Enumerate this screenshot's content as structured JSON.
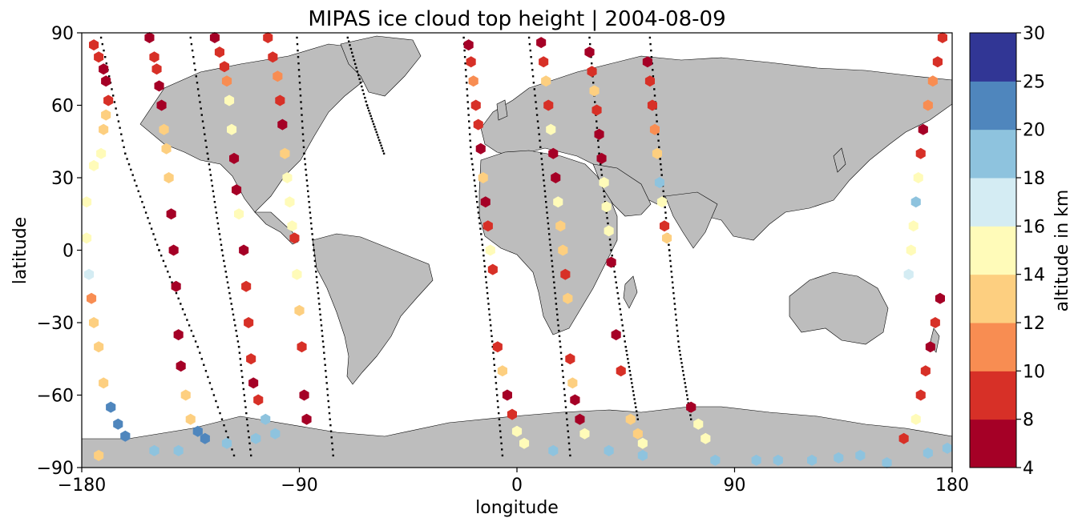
{
  "chart_data": {
    "type": "scatter",
    "title": "MIPAS ice cloud top height | 2004-08-09",
    "xlabel": "longitude",
    "ylabel": "latitude",
    "xlim": [
      -180,
      180
    ],
    "ylim": [
      -90,
      90
    ],
    "x_ticks": [
      -180,
      -90,
      0,
      90,
      180
    ],
    "y_ticks": [
      -90,
      -60,
      -30,
      0,
      30,
      60,
      90
    ],
    "grid": false,
    "colorbar": {
      "label": "altitude in km",
      "bounds": [
        4,
        8,
        10,
        12,
        14,
        16,
        18,
        20,
        25,
        30
      ],
      "colors": [
        "#a50026",
        "#d73027",
        "#f46d43",
        "#fdae61",
        "#fee090",
        "#ffffbf",
        "#e0f3f8",
        "#abd9e9",
        "#74add1",
        "#4575b4",
        "#313695"
      ],
      "level_colors": [
        "#a50026",
        "#d73027",
        "#f88d52",
        "#fdcf80",
        "#fffbb9",
        "#d4ecf3",
        "#8ec3de",
        "#4f86bd",
        "#313695"
      ]
    },
    "background": {
      "land_color": "#bdbdbd",
      "coastline_color": "#000000",
      "ocean_color": "#ffffff"
    },
    "tracks": [
      {
        "x": [
          -180,
          -176,
          -172,
          -168,
          -165,
          -162
        ],
        "y": [
          85,
          70,
          50,
          20,
          -20,
          -80
        ],
        "color_hint": "mixed"
      },
      {
        "x": [
          -152,
          -150,
          -148,
          -145,
          -142,
          -140
        ],
        "y": [
          88,
          70,
          40,
          0,
          -40,
          -78
        ],
        "color_hint": "mixed"
      },
      {
        "x": [
          -125,
          -123,
          -120,
          -118,
          -115,
          -112
        ],
        "y": [
          88,
          70,
          40,
          10,
          -30,
          -72
        ],
        "color_hint": "mixed"
      },
      {
        "x": [
          -103,
          -101,
          -99,
          -96,
          -92,
          -88
        ],
        "y": [
          88,
          70,
          40,
          10,
          -30,
          -72
        ],
        "color_hint": "mixed"
      },
      {
        "x": [
          -22,
          -20,
          -17,
          -13,
          -8,
          -3
        ],
        "y": [
          82,
          60,
          30,
          0,
          -40,
          -82
        ],
        "color_hint": "mixed"
      },
      {
        "x": [
          10,
          12,
          15,
          18,
          21,
          25
        ],
        "y": [
          82,
          60,
          30,
          0,
          -40,
          -82
        ],
        "color_hint": "mixed"
      },
      {
        "x": [
          30,
          33,
          37,
          41,
          44,
          48
        ],
        "y": [
          82,
          60,
          30,
          0,
          -40,
          -82
        ],
        "color_hint": "mixed"
      },
      {
        "x": [
          55,
          57,
          59,
          62,
          65,
          75
        ],
        "y": [
          82,
          60,
          30,
          5,
          -60,
          -85
        ],
        "color_hint": "mixed"
      },
      {
        "x": [
          176,
          174,
          170,
          165,
          160,
          155
        ],
        "y": [
          88,
          60,
          30,
          0,
          -40,
          -85
        ],
        "color_hint": "mixed"
      }
    ],
    "sample_points": [
      {
        "x": -175,
        "y": 85,
        "z": 8.5
      },
      {
        "x": -173,
        "y": 80,
        "z": 9.5
      },
      {
        "x": -171,
        "y": 75,
        "z": 7.0
      },
      {
        "x": -170,
        "y": 70,
        "z": 7.5
      },
      {
        "x": -169,
        "y": 62,
        "z": 9.0
      },
      {
        "x": -170,
        "y": 56,
        "z": 12.5
      },
      {
        "x": -171,
        "y": 50,
        "z": 13.0
      },
      {
        "x": -172,
        "y": 40,
        "z": 14.5
      },
      {
        "x": -175,
        "y": 35,
        "z": 15.0
      },
      {
        "x": -178,
        "y": 20,
        "z": 14.0
      },
      {
        "x": -178,
        "y": 5,
        "z": 14.5
      },
      {
        "x": -177,
        "y": -10,
        "z": 16.5
      },
      {
        "x": -176,
        "y": -20,
        "z": 11.0
      },
      {
        "x": -175,
        "y": -30,
        "z": 12.0
      },
      {
        "x": -173,
        "y": -40,
        "z": 12.8
      },
      {
        "x": -171,
        "y": -55,
        "z": 13.4
      },
      {
        "x": -168,
        "y": -65,
        "z": 21.0
      },
      {
        "x": -165,
        "y": -72,
        "z": 22.0
      },
      {
        "x": -162,
        "y": -77,
        "z": 23.0
      },
      {
        "x": -152,
        "y": 88,
        "z": 7.0
      },
      {
        "x": -150,
        "y": 80,
        "z": 9.2
      },
      {
        "x": -149,
        "y": 75,
        "z": 9.0
      },
      {
        "x": -148,
        "y": 68,
        "z": 7.4
      },
      {
        "x": -147,
        "y": 60,
        "z": 7.8
      },
      {
        "x": -146,
        "y": 50,
        "z": 12.2
      },
      {
        "x": -145,
        "y": 42,
        "z": 13.6
      },
      {
        "x": -144,
        "y": 30,
        "z": 12.8
      },
      {
        "x": -143,
        "y": 15,
        "z": 7.5
      },
      {
        "x": -142,
        "y": 0,
        "z": 7.2
      },
      {
        "x": -141,
        "y": -15,
        "z": 7.7
      },
      {
        "x": -140,
        "y": -35,
        "z": 7.6
      },
      {
        "x": -139,
        "y": -48,
        "z": 7.4
      },
      {
        "x": -137,
        "y": -60,
        "z": 12.6
      },
      {
        "x": -135,
        "y": -70,
        "z": 13.2
      },
      {
        "x": -132,
        "y": -75,
        "z": 22.5
      },
      {
        "x": -129,
        "y": -78,
        "z": 23.0
      },
      {
        "x": -125,
        "y": 88,
        "z": 7.1
      },
      {
        "x": -123,
        "y": 82,
        "z": 9.3
      },
      {
        "x": -121,
        "y": 76,
        "z": 8.8
      },
      {
        "x": -120,
        "y": 70,
        "z": 11.6
      },
      {
        "x": -119,
        "y": 62,
        "z": 15.0
      },
      {
        "x": -118,
        "y": 50,
        "z": 14.2
      },
      {
        "x": -117,
        "y": 38,
        "z": 7.5
      },
      {
        "x": -116,
        "y": 25,
        "z": 7.9
      },
      {
        "x": -115,
        "y": 15,
        "z": 14.6
      },
      {
        "x": -113,
        "y": 0,
        "z": 7.3
      },
      {
        "x": -112,
        "y": -15,
        "z": 8.9
      },
      {
        "x": -111,
        "y": -30,
        "z": 9.4
      },
      {
        "x": -110,
        "y": -45,
        "z": 8.7
      },
      {
        "x": -109,
        "y": -55,
        "z": 7.2
      },
      {
        "x": -107,
        "y": -62,
        "z": 8.3
      },
      {
        "x": -104,
        "y": -70,
        "z": 18.5
      },
      {
        "x": -100,
        "y": -76,
        "z": 19.0
      },
      {
        "x": -103,
        "y": 88,
        "z": 8.3
      },
      {
        "x": -101,
        "y": 80,
        "z": 9.6
      },
      {
        "x": -99,
        "y": 72,
        "z": 11.2
      },
      {
        "x": -98,
        "y": 62,
        "z": 8.9
      },
      {
        "x": -97,
        "y": 52,
        "z": 7.6
      },
      {
        "x": -96,
        "y": 40,
        "z": 12.6
      },
      {
        "x": -95,
        "y": 30,
        "z": 15.4
      },
      {
        "x": -94,
        "y": 20,
        "z": 14.8
      },
      {
        "x": -93,
        "y": 10,
        "z": 15.2
      },
      {
        "x": -92,
        "y": 5,
        "z": 8.9
      },
      {
        "x": -91,
        "y": -10,
        "z": 14.1
      },
      {
        "x": -90,
        "y": -25,
        "z": 12.9
      },
      {
        "x": -89,
        "y": -40,
        "z": 8.7
      },
      {
        "x": -88,
        "y": -60,
        "z": 7.4
      },
      {
        "x": -87,
        "y": -70,
        "z": 7.8
      },
      {
        "x": -20,
        "y": 85,
        "z": 7.8
      },
      {
        "x": -19,
        "y": 78,
        "z": 9.7
      },
      {
        "x": -18,
        "y": 70,
        "z": 11.1
      },
      {
        "x": -17,
        "y": 60,
        "z": 9.4
      },
      {
        "x": -16,
        "y": 52,
        "z": 8.8
      },
      {
        "x": -15,
        "y": 42,
        "z": 7.8
      },
      {
        "x": -14,
        "y": 30,
        "z": 12.5
      },
      {
        "x": -13,
        "y": 20,
        "z": 7.4
      },
      {
        "x": -12,
        "y": 10,
        "z": 8.6
      },
      {
        "x": -11,
        "y": 0,
        "z": 15.6
      },
      {
        "x": -10,
        "y": -8,
        "z": 8.7
      },
      {
        "x": -8,
        "y": -40,
        "z": 8.9
      },
      {
        "x": -6,
        "y": -50,
        "z": 13.6
      },
      {
        "x": -4,
        "y": -60,
        "z": 7.3
      },
      {
        "x": -2,
        "y": -68,
        "z": 8.5
      },
      {
        "x": 0,
        "y": -75,
        "z": 14.2
      },
      {
        "x": 3,
        "y": -80,
        "z": 15.1
      },
      {
        "x": 10,
        "y": 86,
        "z": 7.7
      },
      {
        "x": 11,
        "y": 78,
        "z": 9.2
      },
      {
        "x": 12,
        "y": 70,
        "z": 12.4
      },
      {
        "x": 13,
        "y": 60,
        "z": 9.1
      },
      {
        "x": 14,
        "y": 50,
        "z": 14.2
      },
      {
        "x": 15,
        "y": 40,
        "z": 7.3
      },
      {
        "x": 16,
        "y": 30,
        "z": 7.8
      },
      {
        "x": 17,
        "y": 20,
        "z": 15.7
      },
      {
        "x": 18,
        "y": 10,
        "z": 13.6
      },
      {
        "x": 19,
        "y": 0,
        "z": 12.7
      },
      {
        "x": 20,
        "y": -10,
        "z": 8.5
      },
      {
        "x": 21,
        "y": -20,
        "z": 12.2
      },
      {
        "x": 22,
        "y": -45,
        "z": 8.9
      },
      {
        "x": 23,
        "y": -55,
        "z": 12.4
      },
      {
        "x": 24,
        "y": -62,
        "z": 7.4
      },
      {
        "x": 26,
        "y": -70,
        "z": 7.8
      },
      {
        "x": 28,
        "y": -76,
        "z": 15.2
      },
      {
        "x": 30,
        "y": 82,
        "z": 7.3
      },
      {
        "x": 31,
        "y": 74,
        "z": 9.6
      },
      {
        "x": 32,
        "y": 66,
        "z": 13.1
      },
      {
        "x": 33,
        "y": 58,
        "z": 9.1
      },
      {
        "x": 34,
        "y": 48,
        "z": 7.4
      },
      {
        "x": 35,
        "y": 38,
        "z": 7.6
      },
      {
        "x": 36,
        "y": 28,
        "z": 15.2
      },
      {
        "x": 37,
        "y": 18,
        "z": 15.6
      },
      {
        "x": 38,
        "y": 8,
        "z": 15.4
      },
      {
        "x": 39,
        "y": -5,
        "z": 7.6
      },
      {
        "x": 41,
        "y": -35,
        "z": 7.8
      },
      {
        "x": 43,
        "y": -50,
        "z": 8.6
      },
      {
        "x": 47,
        "y": -70,
        "z": 13.3
      },
      {
        "x": 50,
        "y": -76,
        "z": 13.8
      },
      {
        "x": 52,
        "y": -80,
        "z": 15.4
      },
      {
        "x": 54,
        "y": 78,
        "z": 7.7
      },
      {
        "x": 55,
        "y": 70,
        "z": 9.4
      },
      {
        "x": 56,
        "y": 60,
        "z": 8.8
      },
      {
        "x": 57,
        "y": 50,
        "z": 11.5
      },
      {
        "x": 58,
        "y": 40,
        "z": 13.8
      },
      {
        "x": 59,
        "y": 28,
        "z": 19.0
      },
      {
        "x": 60,
        "y": 20,
        "z": 15.2
      },
      {
        "x": 61,
        "y": 10,
        "z": 8.9
      },
      {
        "x": 62,
        "y": 5,
        "z": 12.2
      },
      {
        "x": 72,
        "y": -65,
        "z": 7.4
      },
      {
        "x": 75,
        "y": -72,
        "z": 14.2
      },
      {
        "x": 78,
        "y": -78,
        "z": 15.8
      },
      {
        "x": 176,
        "y": 88,
        "z": 8.6
      },
      {
        "x": 174,
        "y": 78,
        "z": 9.1
      },
      {
        "x": 172,
        "y": 70,
        "z": 11.6
      },
      {
        "x": 170,
        "y": 60,
        "z": 10.8
      },
      {
        "x": 168,
        "y": 50,
        "z": 7.8
      },
      {
        "x": 167,
        "y": 40,
        "z": 8.7
      },
      {
        "x": 166,
        "y": 30,
        "z": 15.6
      },
      {
        "x": 165,
        "y": 20,
        "z": 18.7
      },
      {
        "x": 164,
        "y": 10,
        "z": 14.8
      },
      {
        "x": 163,
        "y": 0,
        "z": 15.4
      },
      {
        "x": 162,
        "y": -10,
        "z": 16.4
      },
      {
        "x": 175,
        "y": -20,
        "z": 7.3
      },
      {
        "x": 173,
        "y": -30,
        "z": 8.8
      },
      {
        "x": 171,
        "y": -40,
        "z": 7.6
      },
      {
        "x": 169,
        "y": -50,
        "z": 8.4
      },
      {
        "x": 167,
        "y": -60,
        "z": 9.5
      },
      {
        "x": 165,
        "y": -70,
        "z": 14.6
      },
      {
        "x": 160,
        "y": -78,
        "z": 9.2
      },
      {
        "x": -173,
        "y": -85,
        "z": 13.6
      },
      {
        "x": -150,
        "y": -83,
        "z": 19.2
      },
      {
        "x": -140,
        "y": -83,
        "z": 19.0
      },
      {
        "x": -120,
        "y": -80,
        "z": 19.3
      },
      {
        "x": -108,
        "y": -78,
        "z": 18.8
      },
      {
        "x": 15,
        "y": -83,
        "z": 19.1
      },
      {
        "x": 38,
        "y": -83,
        "z": 18.6
      },
      {
        "x": 52,
        "y": -85,
        "z": 19.4
      },
      {
        "x": 82,
        "y": -87,
        "z": 18.5
      },
      {
        "x": 99,
        "y": -87,
        "z": 18.9
      },
      {
        "x": 108,
        "y": -87,
        "z": 18.6
      },
      {
        "x": 122,
        "y": -87,
        "z": 19.2
      },
      {
        "x": 133,
        "y": -86,
        "z": 18.8
      },
      {
        "x": 142,
        "y": -85,
        "z": 19.3
      },
      {
        "x": 153,
        "y": -88,
        "z": 19.0
      },
      {
        "x": 170,
        "y": -84,
        "z": 19.1
      },
      {
        "x": 178,
        "y": -82,
        "z": 18.8
      }
    ],
    "dot_tracks": [
      {
        "x": [
          -172,
          -162,
          -148,
          -132,
          -117
        ],
        "y": [
          88,
          40,
          0,
          -40,
          -85
        ]
      },
      {
        "x": [
          -135,
          -128,
          -122,
          -115,
          -110
        ],
        "y": [
          88,
          40,
          0,
          -40,
          -85
        ]
      },
      {
        "x": [
          -91,
          -88,
          -84,
          -80,
          -76
        ],
        "y": [
          88,
          40,
          0,
          -40,
          -85
        ]
      },
      {
        "x": [
          -70,
          -62,
          -55
        ],
        "y": [
          88,
          60,
          40
        ]
      },
      {
        "x": [
          -22,
          -19,
          -14,
          -10,
          -6
        ],
        "y": [
          88,
          40,
          0,
          -40,
          -85
        ]
      },
      {
        "x": [
          5,
          10,
          14,
          18,
          22
        ],
        "y": [
          88,
          40,
          0,
          -40,
          -85
        ]
      },
      {
        "x": [
          30,
          34,
          39,
          45,
          50
        ],
        "y": [
          88,
          40,
          0,
          -40,
          -70
        ]
      },
      {
        "x": [
          55,
          59,
          63,
          67,
          72
        ],
        "y": [
          88,
          40,
          0,
          -40,
          -70
        ]
      }
    ]
  }
}
